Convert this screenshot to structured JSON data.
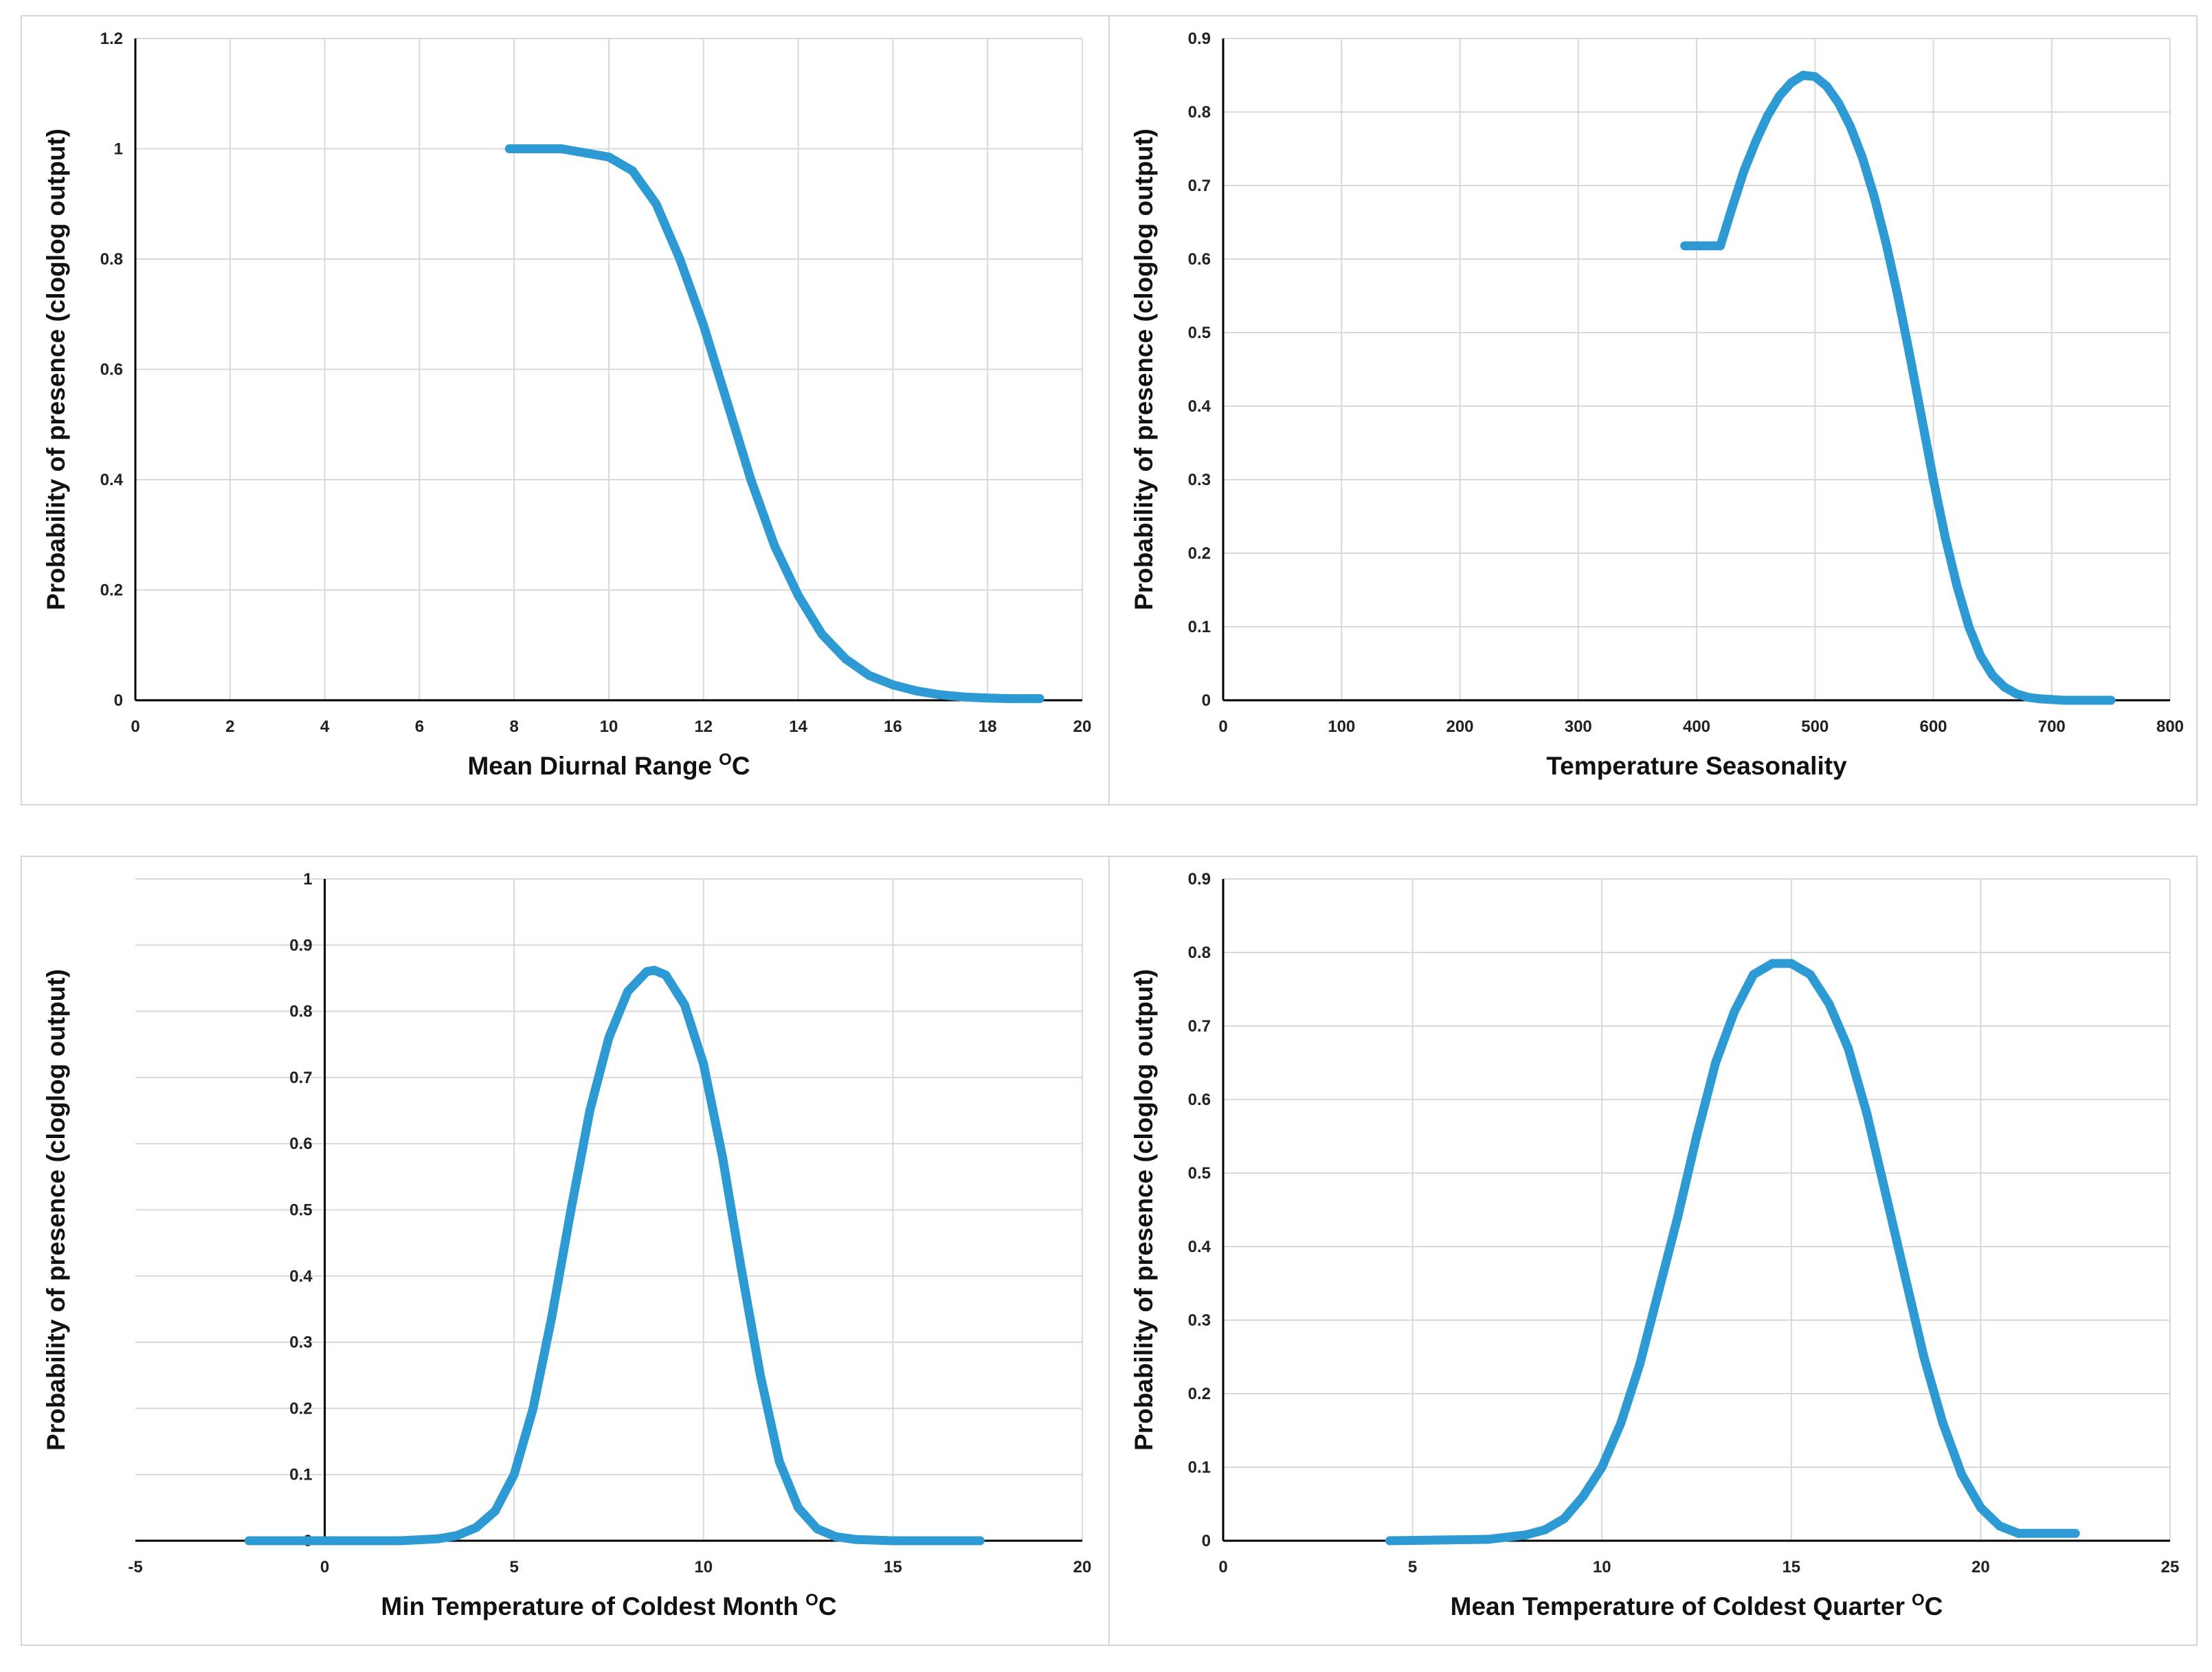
{
  "ylabel": "Probability of presence (cloglog output)",
  "colors": {
    "series": "#2E9AD4",
    "grid": "#D9D9D9",
    "axis": "#000000"
  },
  "chart_data": [
    {
      "type": "line",
      "title": "",
      "xlabel": "Mean Diurnal Range",
      "xunit_sup": "O",
      "xunit": "C",
      "ylabel": "Probability of presence (cloglog output)",
      "xlim": [
        0,
        20
      ],
      "ylim": [
        0,
        1.2
      ],
      "xticks": [
        "0",
        "2",
        "4",
        "6",
        "8",
        "10",
        "12",
        "14",
        "16",
        "18",
        "20"
      ],
      "yticks": [
        "0",
        "0.2",
        "0.4",
        "0.6",
        "0.8",
        "1",
        "1.2"
      ],
      "x": [
        7.9,
        9,
        10,
        10.5,
        11,
        11.5,
        12,
        12.5,
        13,
        13.5,
        14,
        14.5,
        15,
        15.5,
        16,
        16.5,
        17,
        17.5,
        18,
        18.5,
        19.1
      ],
      "y": [
        1.0,
        1.0,
        0.985,
        0.96,
        0.9,
        0.8,
        0.68,
        0.54,
        0.4,
        0.28,
        0.19,
        0.12,
        0.075,
        0.045,
        0.028,
        0.017,
        0.01,
        0.006,
        0.004,
        0.003,
        0.003
      ]
    },
    {
      "type": "line",
      "title": "",
      "xlabel": "Temperature Seasonality",
      "xunit_sup": "",
      "xunit": "",
      "ylabel": "Probability of presence (cloglog output)",
      "xlim": [
        0,
        800
      ],
      "ylim": [
        0,
        0.9
      ],
      "xticks": [
        "0",
        "100",
        "200",
        "300",
        "400",
        "500",
        "600",
        "700",
        "800"
      ],
      "yticks": [
        "0",
        "0.1",
        "0.2",
        "0.3",
        "0.4",
        "0.5",
        "0.6",
        "0.7",
        "0.8",
        "0.9"
      ],
      "x": [
        390,
        420,
        430,
        440,
        450,
        460,
        470,
        480,
        490,
        500,
        510,
        520,
        530,
        540,
        550,
        560,
        570,
        580,
        590,
        600,
        610,
        620,
        630,
        640,
        650,
        660,
        670,
        680,
        690,
        700,
        710,
        720,
        750
      ],
      "y": [
        0.618,
        0.618,
        0.67,
        0.72,
        0.76,
        0.795,
        0.822,
        0.84,
        0.85,
        0.848,
        0.835,
        0.812,
        0.78,
        0.738,
        0.685,
        0.622,
        0.55,
        0.47,
        0.385,
        0.3,
        0.222,
        0.155,
        0.1,
        0.06,
        0.034,
        0.018,
        0.009,
        0.004,
        0.002,
        0.001,
        0.0,
        0.0,
        0.0
      ]
    },
    {
      "type": "line",
      "title": "",
      "xlabel": "Min Temperature of Coldest Month",
      "xunit_sup": "O",
      "xunit": "C",
      "ylabel": "Probability of presence (cloglog output)",
      "xlim": [
        -5,
        20
      ],
      "ylim": [
        0,
        1
      ],
      "xticks": [
        "-5",
        "0",
        "5",
        "10",
        "15",
        "20"
      ],
      "yticks": [
        "0",
        "0.1",
        "0.2",
        "0.3",
        "0.4",
        "0.5",
        "0.6",
        "0.7",
        "0.8",
        "0.9",
        "1"
      ],
      "x": [
        -2,
        2,
        3,
        3.5,
        4,
        4.5,
        5,
        5.5,
        6,
        6.5,
        7,
        7.5,
        8,
        8.5,
        8.7,
        9,
        9.5,
        10,
        10.5,
        11,
        11.5,
        12,
        12.5,
        13,
        13.5,
        14,
        15,
        17.3
      ],
      "y": [
        0,
        0.0,
        0.003,
        0.008,
        0.02,
        0.045,
        0.1,
        0.2,
        0.34,
        0.5,
        0.65,
        0.76,
        0.83,
        0.86,
        0.862,
        0.855,
        0.81,
        0.72,
        0.58,
        0.41,
        0.25,
        0.12,
        0.05,
        0.018,
        0.006,
        0.002,
        0,
        0
      ]
    },
    {
      "type": "line",
      "title": "",
      "xlabel": "Mean Temperature of Coldest Quarter",
      "xunit_sup": "O",
      "xunit": "C",
      "ylabel": "Probability of presence (cloglog output)",
      "xlim": [
        0,
        25
      ],
      "ylim": [
        0,
        0.9
      ],
      "xticks": [
        "0",
        "5",
        "10",
        "15",
        "20",
        "25"
      ],
      "yticks": [
        "0",
        "0.1",
        "0.2",
        "0.3",
        "0.4",
        "0.5",
        "0.6",
        "0.7",
        "0.8",
        "0.9"
      ],
      "x": [
        4.4,
        7,
        8,
        8.5,
        9,
        9.5,
        10,
        10.5,
        11,
        11.5,
        12,
        12.5,
        13,
        13.5,
        14,
        14.5,
        15,
        15.5,
        16,
        16.5,
        17,
        17.5,
        18,
        18.5,
        19,
        19.5,
        20,
        20.5,
        21,
        22.5
      ],
      "y": [
        0,
        0.002,
        0.008,
        0.015,
        0.03,
        0.06,
        0.1,
        0.16,
        0.24,
        0.34,
        0.44,
        0.55,
        0.65,
        0.72,
        0.77,
        0.785,
        0.785,
        0.77,
        0.73,
        0.67,
        0.58,
        0.47,
        0.36,
        0.25,
        0.16,
        0.09,
        0.045,
        0.02,
        0.01,
        0.01
      ]
    }
  ]
}
